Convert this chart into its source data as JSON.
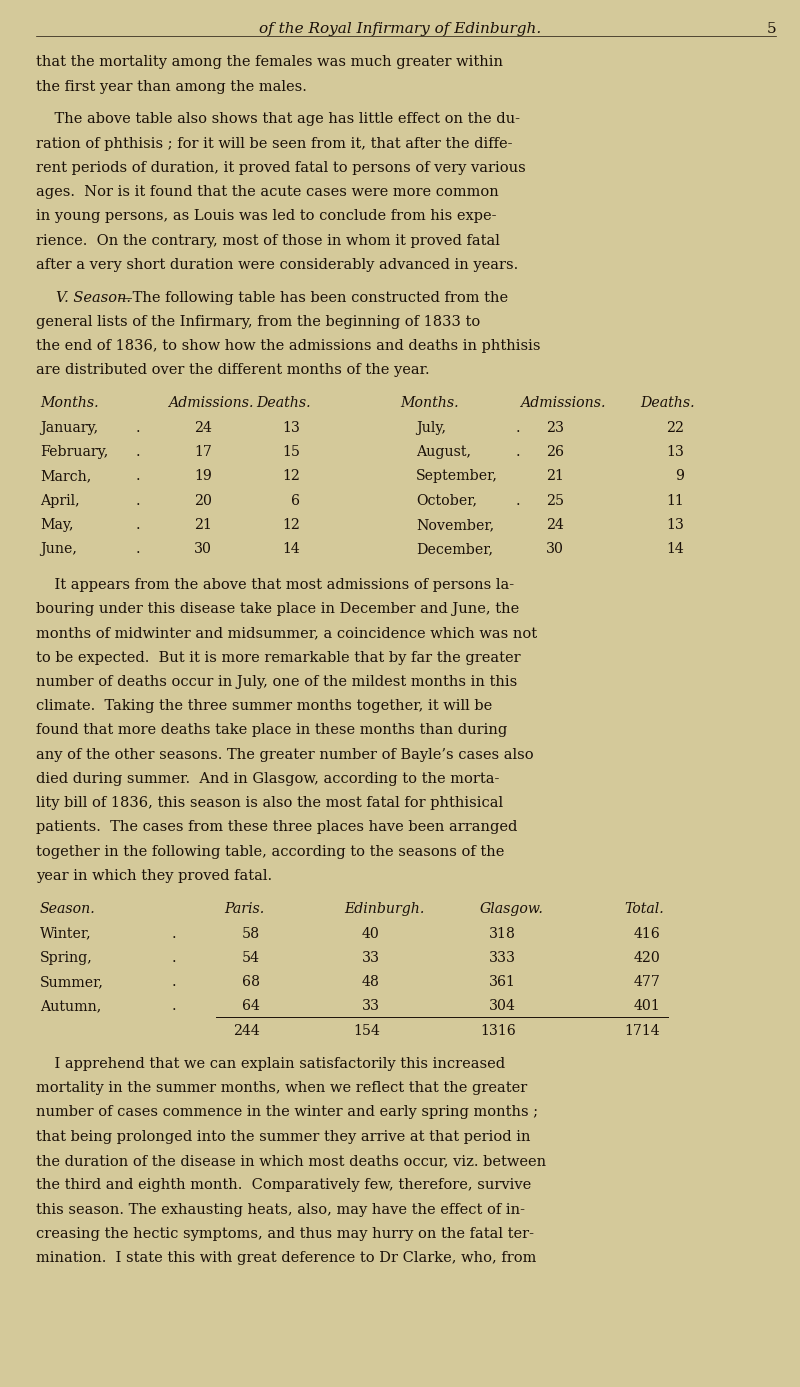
{
  "background_color": "#d4c99a",
  "text_color": "#1a1008",
  "page_width": 8.0,
  "page_height": 13.87,
  "dpi": 100,
  "header_italic": "of the Royal Infirmary of Edinburgh.",
  "header_page_num": "5",
  "paragraphs": [
    "that the mortality among the females was much greater within\nthe first year than among the males.",
    "    The above table also shows that age has little effect on the du-\nration of phthisis ; for it will be seen from it, that after the diffe-\nrent periods of duration, it proved fatal to persons of very various\nages.  Nor is it found that the acute cases were more common\nin young persons, as Louis was led to conclude from his expe-\nrience.  On the contrary, most of those in whom it proved fatal\nafter a very short duration were considerably advanced in years.",
    "    V. Season.—The following table has been constructed from the\ngeneral lists of the Infirmary, from the beginning of 1833 to\nthe end of 1836, to show how the admissions and deaths in phthisis\nare distributed over the different months of the year."
  ],
  "table1_header": [
    "Months.",
    "Admissions.",
    "Deaths.",
    "Months.",
    "Admissions.",
    "Deaths."
  ],
  "table1_rows": [
    [
      "January,",
      ".",
      "24",
      "13",
      "July,",
      ".",
      "23",
      "22"
    ],
    [
      "February,",
      ".",
      "17",
      "15",
      "August,",
      ".",
      "26",
      "13"
    ],
    [
      "March,",
      ".",
      "19",
      "12",
      "September,",
      "",
      "21",
      "9"
    ],
    [
      "April,",
      ".",
      "20",
      "6",
      "October,",
      ".",
      "25",
      "11"
    ],
    [
      "May,",
      ".",
      "21",
      "12",
      "November,",
      "",
      "24",
      "13"
    ],
    [
      "June,",
      ".",
      "30",
      "14",
      "December,",
      "",
      "30",
      "14"
    ]
  ],
  "paragraph2": "    It appears from the above that most admissions of persons la-\nbouring under this disease take place in December and June, the\nmonths of midwinter and midsummer, a coincidence which was not\nto be expected.  But it is more remarkable that by far the greater\nnumber of deaths occur in July, one of the mildest months in this\nclimate.  Taking the three summer months together, it will be\nfound that more deaths take place in these months than during\nany of the other seasons. The greater number of Bayle’s cases also\ndied during summer.  And in Glasgow, according to the morta-\nlity bill of 1836, this season is also the most fatal for phthisical\npatients.  The cases from these three places have been arranged\ntogether in the following table, according to the seasons of the\nyear in which they proved fatal.",
  "table2_header": [
    "Season.",
    "Paris.",
    "Edinburgh.",
    "Glasgow.",
    "Total."
  ],
  "table2_rows": [
    [
      "Winter,",
      ".",
      "58",
      "40",
      "318",
      "416"
    ],
    [
      "Spring,",
      ".",
      "54",
      "33",
      "333",
      "420"
    ],
    [
      "Summer,",
      ".",
      "68",
      "48",
      "361",
      "477"
    ],
    [
      "Autumn,",
      ".",
      "64",
      "33",
      "304",
      "401"
    ]
  ],
  "table2_totals": [
    "",
    "244",
    "154",
    "1316",
    "1714"
  ],
  "paragraph3": "    I apprehend that we can explain satisfactorily this increased\nmortality in the summer months, when we reflect that the greater\nnumber of cases commence in the winter and early spring months ;\nthat being prolonged into the summer they arrive at that period in\nthe duration of the disease in which most deaths occur, viz. between\nthe third and eighth month.  Comparatively few, therefore, survive\nthis season. The exhausting heats, also, may have the effect of in-\ncreasing the hectic symptoms, and thus may hurry on the fatal ter-\nmination.  I state this with great deference to Dr Clarke, who, from"
}
